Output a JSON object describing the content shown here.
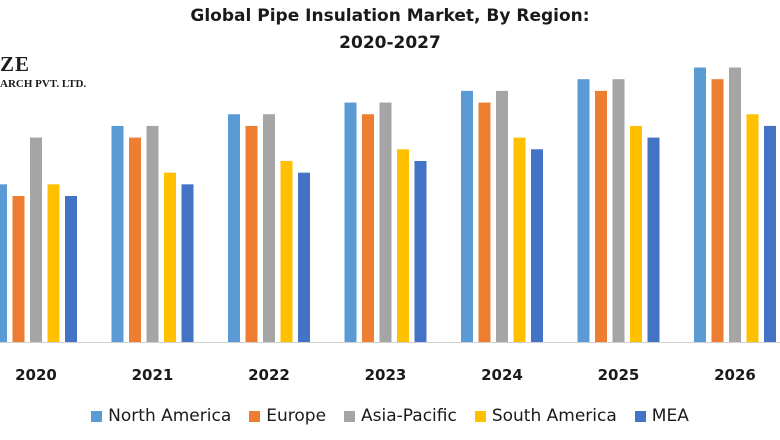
{
  "logo": {
    "line1": "ZE",
    "line2": "ARCH PVT. LTD."
  },
  "chart_data": {
    "type": "bar",
    "title": "Global Pipe Insulation Market, By Region:",
    "subtitle": "2020-2027",
    "categories": [
      "2020",
      "2021",
      "2022",
      "2023",
      "2024",
      "2025",
      "2026"
    ],
    "series": [
      {
        "name": "North America",
        "color": "#5b9bd5",
        "values": [
          13.5,
          18.5,
          19.5,
          20.5,
          21.5,
          22.5,
          23.5
        ]
      },
      {
        "name": "Europe",
        "color": "#ed7d31",
        "values": [
          12.5,
          17.5,
          18.5,
          19.5,
          20.5,
          21.5,
          22.5
        ]
      },
      {
        "name": "Asia-Pacific",
        "color": "#a5a5a5",
        "values": [
          17.5,
          18.5,
          19.5,
          20.5,
          21.5,
          22.5,
          23.5
        ]
      },
      {
        "name": "South America",
        "color": "#ffc000",
        "values": [
          13.5,
          14.5,
          15.5,
          16.5,
          17.5,
          18.5,
          19.5
        ]
      },
      {
        "name": "MEA",
        "color": "#4472c4",
        "values": [
          12.5,
          13.5,
          14.5,
          15.5,
          16.5,
          17.5,
          18.5
        ]
      }
    ],
    "legend_position": "bottom",
    "grid": false,
    "ylim": [
      0,
      25
    ]
  }
}
